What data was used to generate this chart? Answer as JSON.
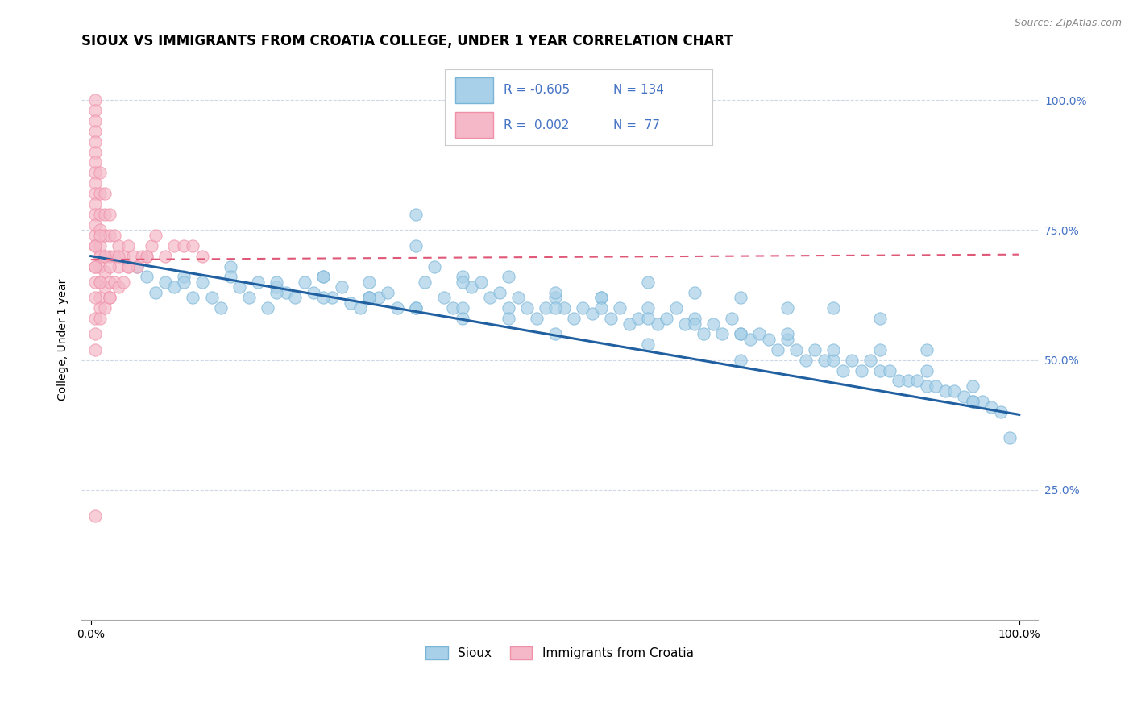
{
  "title": "SIOUX VS IMMIGRANTS FROM CROATIA COLLEGE, UNDER 1 YEAR CORRELATION CHART",
  "source": "Source: ZipAtlas.com",
  "ylabel": "College, Under 1 year",
  "xlim": [
    -0.01,
    1.02
  ],
  "ylim": [
    0.0,
    1.08
  ],
  "xtick_positions": [
    0.0,
    1.0
  ],
  "xtick_labels": [
    "0.0%",
    "100.0%"
  ],
  "ytick_positions": [
    0.25,
    0.5,
    0.75,
    1.0
  ],
  "ytick_labels": [
    "25.0%",
    "50.0%",
    "75.0%",
    "100.0%"
  ],
  "legend1_label": "Sioux",
  "legend2_label": "Immigrants from Croatia",
  "R1": "-0.605",
  "N1": "134",
  "R2": "0.002",
  "N2": "77",
  "blue_color": "#a8d0e8",
  "pink_color": "#f4b8c8",
  "blue_dot_edge": "#7ab5d8",
  "pink_dot_edge": "#f090a8",
  "blue_line_color": "#2060a0",
  "pink_line_color": "#e05878",
  "legend_text_color": "#4472c4",
  "right_tick_color": "#4472c4",
  "title_fontsize": 12,
  "axis_label_fontsize": 10,
  "tick_fontsize": 10,
  "grid_color": "#d0d8e8",
  "background_color": "#ffffff",
  "blue_trendline_x0": 0.0,
  "blue_trendline_x1": 1.0,
  "blue_trendline_y0": 0.7,
  "blue_trendline_y1": 0.395,
  "pink_trendline_y": 0.698,
  "sioux_x": [
    0.05,
    0.06,
    0.07,
    0.08,
    0.09,
    0.1,
    0.11,
    0.12,
    0.13,
    0.14,
    0.15,
    0.16,
    0.17,
    0.18,
    0.19,
    0.2,
    0.21,
    0.22,
    0.23,
    0.24,
    0.25,
    0.26,
    0.27,
    0.28,
    0.29,
    0.3,
    0.31,
    0.32,
    0.33,
    0.35,
    0.36,
    0.37,
    0.38,
    0.39,
    0.4,
    0.41,
    0.42,
    0.43,
    0.44,
    0.45,
    0.46,
    0.47,
    0.48,
    0.49,
    0.5,
    0.51,
    0.52,
    0.53,
    0.54,
    0.55,
    0.56,
    0.57,
    0.58,
    0.59,
    0.6,
    0.61,
    0.62,
    0.63,
    0.64,
    0.65,
    0.66,
    0.67,
    0.68,
    0.69,
    0.7,
    0.71,
    0.72,
    0.73,
    0.74,
    0.75,
    0.76,
    0.77,
    0.78,
    0.79,
    0.8,
    0.81,
    0.82,
    0.83,
    0.84,
    0.85,
    0.86,
    0.87,
    0.88,
    0.89,
    0.9,
    0.91,
    0.92,
    0.93,
    0.94,
    0.95,
    0.96,
    0.97,
    0.98,
    0.99,
    0.3,
    0.35,
    0.4,
    0.45,
    0.5,
    0.55,
    0.6,
    0.65,
    0.7,
    0.75,
    0.8,
    0.85,
    0.9,
    0.95,
    0.1,
    0.15,
    0.2,
    0.25,
    0.3,
    0.35,
    0.4,
    0.45,
    0.5,
    0.55,
    0.6,
    0.65,
    0.7,
    0.75,
    0.8,
    0.85,
    0.9,
    0.95,
    0.2,
    0.25,
    0.3,
    0.35,
    0.4,
    0.5,
    0.6,
    0.7
  ],
  "sioux_y": [
    0.68,
    0.66,
    0.63,
    0.65,
    0.64,
    0.66,
    0.62,
    0.65,
    0.62,
    0.6,
    0.68,
    0.64,
    0.62,
    0.65,
    0.6,
    0.64,
    0.63,
    0.62,
    0.65,
    0.63,
    0.66,
    0.62,
    0.64,
    0.61,
    0.6,
    0.65,
    0.62,
    0.63,
    0.6,
    0.72,
    0.65,
    0.68,
    0.62,
    0.6,
    0.66,
    0.64,
    0.65,
    0.62,
    0.63,
    0.6,
    0.62,
    0.6,
    0.58,
    0.6,
    0.62,
    0.6,
    0.58,
    0.6,
    0.59,
    0.62,
    0.58,
    0.6,
    0.57,
    0.58,
    0.6,
    0.57,
    0.58,
    0.6,
    0.57,
    0.58,
    0.55,
    0.57,
    0.55,
    0.58,
    0.55,
    0.54,
    0.55,
    0.54,
    0.52,
    0.54,
    0.52,
    0.5,
    0.52,
    0.5,
    0.5,
    0.48,
    0.5,
    0.48,
    0.5,
    0.48,
    0.48,
    0.46,
    0.46,
    0.46,
    0.45,
    0.45,
    0.44,
    0.44,
    0.43,
    0.42,
    0.42,
    0.41,
    0.4,
    0.35,
    0.62,
    0.78,
    0.65,
    0.66,
    0.63,
    0.62,
    0.65,
    0.63,
    0.62,
    0.6,
    0.6,
    0.58,
    0.52,
    0.45,
    0.65,
    0.66,
    0.63,
    0.66,
    0.62,
    0.6,
    0.6,
    0.58,
    0.6,
    0.6,
    0.58,
    0.57,
    0.55,
    0.55,
    0.52,
    0.52,
    0.48,
    0.42,
    0.65,
    0.62,
    0.62,
    0.6,
    0.58,
    0.55,
    0.53,
    0.5
  ],
  "croatia_x": [
    0.005,
    0.005,
    0.005,
    0.005,
    0.005,
    0.005,
    0.005,
    0.005,
    0.005,
    0.005,
    0.005,
    0.005,
    0.005,
    0.005,
    0.005,
    0.01,
    0.01,
    0.01,
    0.01,
    0.01,
    0.01,
    0.01,
    0.01,
    0.01,
    0.01,
    0.015,
    0.015,
    0.015,
    0.015,
    0.015,
    0.015,
    0.015,
    0.02,
    0.02,
    0.02,
    0.02,
    0.02,
    0.025,
    0.025,
    0.025,
    0.03,
    0.03,
    0.03,
    0.035,
    0.035,
    0.04,
    0.04,
    0.045,
    0.05,
    0.055,
    0.06,
    0.065,
    0.07,
    0.08,
    0.09,
    0.1,
    0.11,
    0.12,
    0.005,
    0.005,
    0.005,
    0.005,
    0.005,
    0.01,
    0.01,
    0.01,
    0.015,
    0.02,
    0.03,
    0.04,
    0.06,
    0.005,
    0.005,
    0.01,
    0.02,
    0.005,
    0.005
  ],
  "croatia_y": [
    1.0,
    0.98,
    0.96,
    0.94,
    0.92,
    0.9,
    0.88,
    0.86,
    0.84,
    0.82,
    0.8,
    0.78,
    0.76,
    0.74,
    0.72,
    0.86,
    0.82,
    0.78,
    0.75,
    0.72,
    0.7,
    0.68,
    0.65,
    0.62,
    0.6,
    0.82,
    0.78,
    0.74,
    0.7,
    0.67,
    0.64,
    0.6,
    0.78,
    0.74,
    0.7,
    0.65,
    0.62,
    0.74,
    0.7,
    0.65,
    0.72,
    0.68,
    0.64,
    0.7,
    0.65,
    0.72,
    0.68,
    0.7,
    0.68,
    0.7,
    0.7,
    0.72,
    0.74,
    0.7,
    0.72,
    0.72,
    0.72,
    0.7,
    0.72,
    0.68,
    0.65,
    0.62,
    0.58,
    0.74,
    0.7,
    0.65,
    0.7,
    0.68,
    0.7,
    0.68,
    0.7,
    0.55,
    0.52,
    0.58,
    0.62,
    0.68,
    0.2
  ]
}
